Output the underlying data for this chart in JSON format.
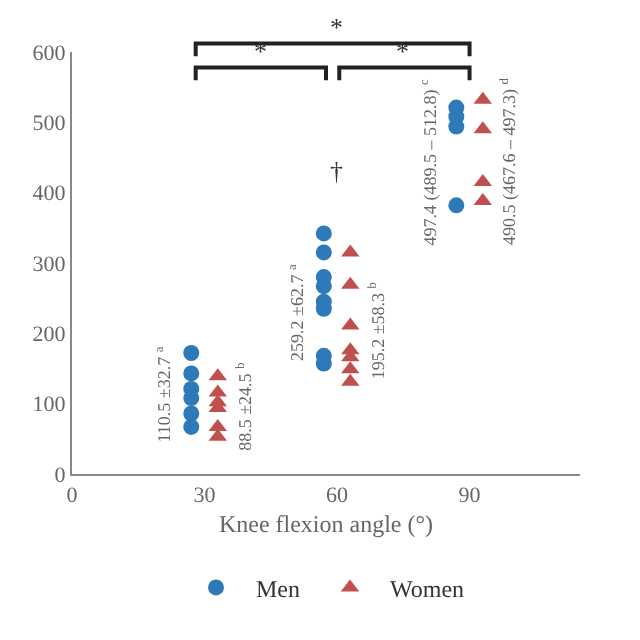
{
  "chart_data": {
    "type": "scatter",
    "xlabel": "Knee flexion angle (°)",
    "xlim": [
      0,
      115
    ],
    "xticks": [
      0,
      30,
      60,
      90
    ],
    "ylim": [
      0,
      600
    ],
    "yticks": [
      0,
      100,
      200,
      300,
      400,
      500,
      600
    ],
    "legend": "bottom",
    "series": [
      {
        "name": "Men",
        "color": "#2e7ab8",
        "marker": "circle",
        "x": [
          27,
          27,
          27,
          27,
          27,
          27,
          57,
          57,
          57,
          57,
          57,
          57,
          57,
          57,
          87,
          87,
          87,
          87
        ],
        "values": [
          172,
          143,
          121,
          108,
          86,
          67,
          342,
          315,
          280,
          267,
          245,
          235,
          168,
          157,
          521,
          508,
          494,
          382
        ]
      },
      {
        "name": "Women",
        "color": "#c0504d",
        "marker": "triangle",
        "x": [
          33,
          33,
          33,
          33,
          33,
          33,
          63,
          63,
          63,
          63,
          63,
          63,
          63,
          93,
          93,
          93,
          93
        ],
        "values": [
          139,
          116,
          102,
          94,
          67,
          53,
          315,
          269,
          211,
          176,
          166,
          149,
          131,
          532,
          490,
          415,
          388
        ]
      }
    ],
    "annotations": [
      "110.5 ±32.7 $^{a}$",
      "88.5 ±24.5 $^{b}$",
      "259.2 ±62.7 $^{a}$",
      "195.2 ±58.3 $^{b}$",
      "497.4 (489.5 – 512.8) $^{c}$",
      "490.5 (467.6 – 497.3) $^{d}$",
      "†",
      "*",
      "*",
      "*"
    ]
  }
}
